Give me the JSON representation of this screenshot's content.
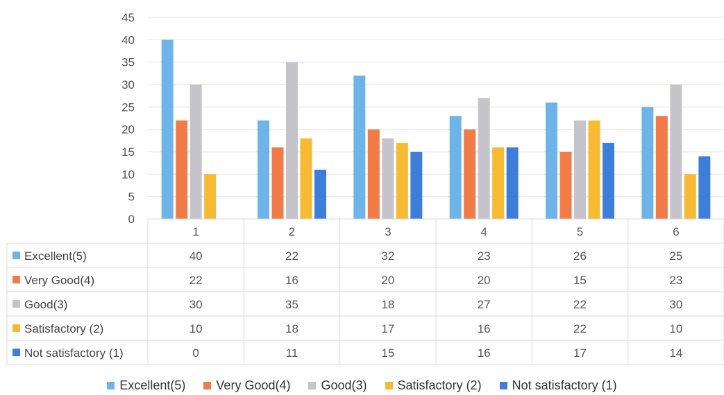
{
  "chart_data": {
    "type": "bar",
    "title": "",
    "xlabel": "",
    "ylabel": "",
    "ylim": [
      0,
      45
    ],
    "yticks": [
      0,
      5,
      10,
      15,
      20,
      25,
      30,
      35,
      40,
      45
    ],
    "grid": true,
    "legend_position": "bottom",
    "data_table": true,
    "categories": [
      "1",
      "2",
      "3",
      "4",
      "5",
      "6"
    ],
    "series": [
      {
        "name": "Excellent(5)",
        "color": "#6FB4E8",
        "values": [
          40,
          22,
          32,
          23,
          26,
          25
        ]
      },
      {
        "name": "Very Good(4)",
        "color": "#F07C4A",
        "values": [
          22,
          16,
          20,
          20,
          15,
          23
        ]
      },
      {
        "name": "Good(3)",
        "color": "#C6C4CB",
        "values": [
          30,
          35,
          18,
          27,
          22,
          30
        ]
      },
      {
        "name": "Satisfactory (2)",
        "color": "#F8BA33",
        "values": [
          10,
          18,
          17,
          16,
          22,
          10
        ]
      },
      {
        "name": "Not satisfactory (1)",
        "color": "#3F7ED8",
        "values": [
          0,
          11,
          15,
          16,
          17,
          14
        ]
      }
    ]
  }
}
